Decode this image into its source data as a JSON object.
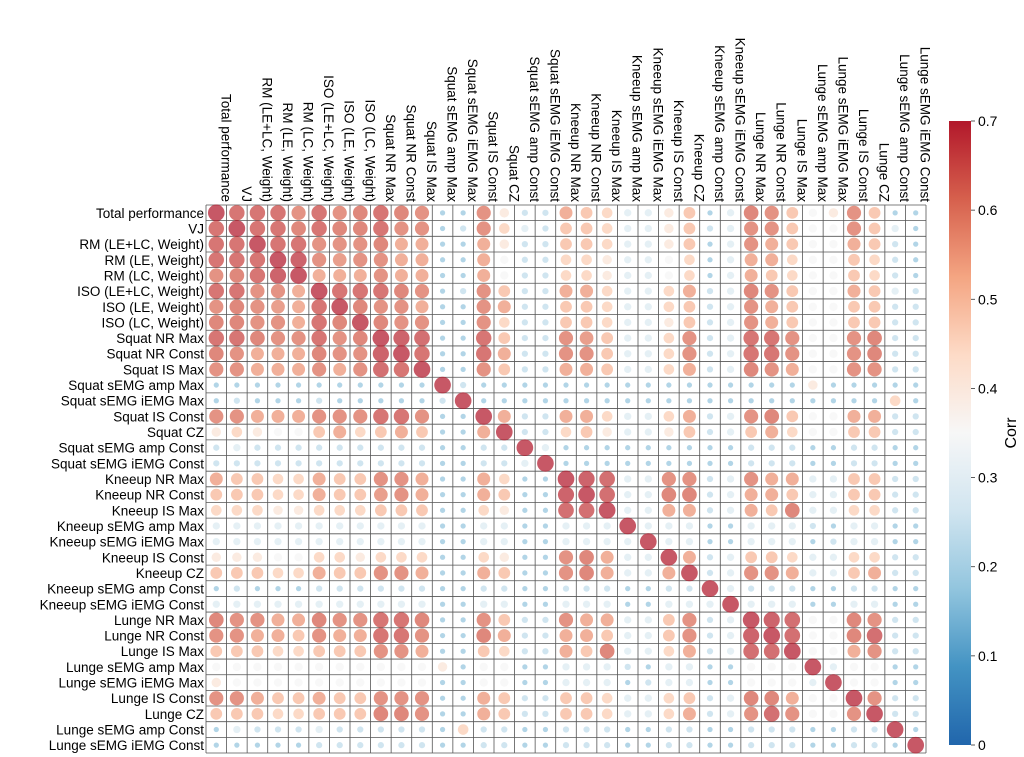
{
  "chart_data": {
    "type": "heatmap",
    "style": "corrplot-circles",
    "variables": [
      "Total performance",
      "VJ",
      "RM (LE+LC, Weight)",
      "RM (LE, Weight)",
      "RM (LC, Weight)",
      "ISO (LE+LC, Weight)",
      "ISO (LE, Weight)",
      "ISO (LC, Weight)",
      "Squat NR Max",
      "Squat NR Const",
      "Squat IS Max",
      "Squat sEMG amp Max",
      "Squat sEMG iEMG Max",
      "Squat IS Const",
      "Squat CZ",
      "Squat sEMG amp Const",
      "Squat sEMG iEMG Const",
      "Kneeup NR Max",
      "Kneeup NR Const",
      "Kneeup IS Max",
      "Kneeup sEMG amp Max",
      "Kneeup sEMG iEMG Max",
      "Kneeup IS Const",
      "Kneeup CZ",
      "Kneeup sEMG amp Const",
      "Kneeup sEMG iEMG Const",
      "Lunge NR Max",
      "Lunge NR Const",
      "Lunge IS Max",
      "Lunge sEMG amp Max",
      "Lunge sEMG iEMG Max",
      "Lunge IS Const",
      "Lunge CZ",
      "Lunge sEMG amp Const",
      "Lunge sEMG iEMG Const"
    ],
    "colorbar": {
      "label": "Corr",
      "min": 0,
      "max": 0.7,
      "ticks": [
        "0",
        "0.1",
        "0.2",
        "0.3",
        "0.4",
        "0.5",
        "0.6",
        "0.7"
      ],
      "stops": [
        "#2166ac",
        "#4393c3",
        "#92c5de",
        "#d1e5f0",
        "#f7f7f7",
        "#fddbc7",
        "#f4a582",
        "#d6604d",
        "#b2182b"
      ]
    },
    "values": [
      [
        0.7,
        0.65,
        0.65,
        0.65,
        0.6,
        0.65,
        0.6,
        0.62,
        0.65,
        0.62,
        0.6,
        0.2,
        0.2,
        0.6,
        0.4,
        0.25,
        0.25,
        0.55,
        0.5,
        0.45,
        0.3,
        0.3,
        0.4,
        0.5,
        0.2,
        0.3,
        0.62,
        0.6,
        0.5,
        0.35,
        0.4,
        0.6,
        0.5,
        0.2,
        0.2
      ],
      [
        0.65,
        0.7,
        0.65,
        0.65,
        0.62,
        0.65,
        0.62,
        0.62,
        0.65,
        0.6,
        0.6,
        0.2,
        0.25,
        0.6,
        0.45,
        0.3,
        0.25,
        0.5,
        0.5,
        0.45,
        0.3,
        0.3,
        0.4,
        0.5,
        0.25,
        0.3,
        0.6,
        0.6,
        0.5,
        0.35,
        0.35,
        0.6,
        0.5,
        0.3,
        0.2
      ],
      [
        0.65,
        0.65,
        0.7,
        0.65,
        0.65,
        0.6,
        0.6,
        0.6,
        0.62,
        0.55,
        0.55,
        0.2,
        0.2,
        0.55,
        0.4,
        0.25,
        0.25,
        0.5,
        0.5,
        0.45,
        0.3,
        0.3,
        0.4,
        0.5,
        0.2,
        0.3,
        0.6,
        0.55,
        0.5,
        0.35,
        0.35,
        0.55,
        0.5,
        0.25,
        0.2
      ],
      [
        0.65,
        0.65,
        0.65,
        0.7,
        0.68,
        0.6,
        0.58,
        0.6,
        0.6,
        0.55,
        0.55,
        0.2,
        0.2,
        0.55,
        0.35,
        0.25,
        0.25,
        0.45,
        0.45,
        0.4,
        0.3,
        0.3,
        0.35,
        0.45,
        0.2,
        0.3,
        0.55,
        0.55,
        0.45,
        0.35,
        0.35,
        0.5,
        0.45,
        0.25,
        0.2
      ],
      [
        0.6,
        0.62,
        0.65,
        0.68,
        0.7,
        0.55,
        0.55,
        0.55,
        0.6,
        0.55,
        0.55,
        0.2,
        0.2,
        0.55,
        0.35,
        0.25,
        0.25,
        0.45,
        0.45,
        0.4,
        0.3,
        0.3,
        0.35,
        0.45,
        0.2,
        0.3,
        0.55,
        0.5,
        0.45,
        0.35,
        0.35,
        0.5,
        0.45,
        0.25,
        0.2
      ],
      [
        0.65,
        0.65,
        0.6,
        0.6,
        0.55,
        0.7,
        0.65,
        0.65,
        0.65,
        0.62,
        0.6,
        0.2,
        0.25,
        0.6,
        0.5,
        0.25,
        0.25,
        0.55,
        0.55,
        0.45,
        0.3,
        0.3,
        0.45,
        0.55,
        0.25,
        0.3,
        0.62,
        0.6,
        0.5,
        0.35,
        0.35,
        0.55,
        0.5,
        0.3,
        0.25
      ],
      [
        0.6,
        0.62,
        0.6,
        0.58,
        0.55,
        0.65,
        0.7,
        0.62,
        0.6,
        0.6,
        0.55,
        0.2,
        0.2,
        0.6,
        0.55,
        0.25,
        0.25,
        0.5,
        0.5,
        0.45,
        0.3,
        0.3,
        0.45,
        0.5,
        0.25,
        0.3,
        0.6,
        0.55,
        0.5,
        0.35,
        0.35,
        0.5,
        0.5,
        0.25,
        0.25
      ],
      [
        0.62,
        0.62,
        0.6,
        0.6,
        0.55,
        0.65,
        0.62,
        0.7,
        0.62,
        0.6,
        0.6,
        0.2,
        0.2,
        0.6,
        0.45,
        0.25,
        0.25,
        0.5,
        0.5,
        0.45,
        0.3,
        0.3,
        0.4,
        0.5,
        0.25,
        0.3,
        0.6,
        0.55,
        0.5,
        0.35,
        0.35,
        0.5,
        0.5,
        0.25,
        0.25
      ],
      [
        0.65,
        0.65,
        0.62,
        0.6,
        0.6,
        0.65,
        0.6,
        0.62,
        0.7,
        0.68,
        0.66,
        0.2,
        0.2,
        0.65,
        0.5,
        0.25,
        0.25,
        0.6,
        0.58,
        0.5,
        0.3,
        0.3,
        0.45,
        0.6,
        0.25,
        0.3,
        0.65,
        0.65,
        0.6,
        0.35,
        0.35,
        0.6,
        0.62,
        0.25,
        0.25
      ],
      [
        0.62,
        0.6,
        0.55,
        0.55,
        0.55,
        0.62,
        0.6,
        0.6,
        0.68,
        0.7,
        0.65,
        0.2,
        0.2,
        0.65,
        0.55,
        0.25,
        0.25,
        0.6,
        0.6,
        0.5,
        0.3,
        0.3,
        0.45,
        0.6,
        0.25,
        0.3,
        0.65,
        0.65,
        0.6,
        0.35,
        0.35,
        0.6,
        0.62,
        0.25,
        0.25
      ],
      [
        0.6,
        0.6,
        0.55,
        0.55,
        0.55,
        0.6,
        0.55,
        0.6,
        0.66,
        0.65,
        0.7,
        0.2,
        0.2,
        0.6,
        0.5,
        0.25,
        0.25,
        0.55,
        0.55,
        0.5,
        0.3,
        0.3,
        0.45,
        0.55,
        0.25,
        0.3,
        0.62,
        0.6,
        0.55,
        0.35,
        0.35,
        0.6,
        0.6,
        0.25,
        0.25
      ],
      [
        0.2,
        0.2,
        0.2,
        0.2,
        0.2,
        0.2,
        0.2,
        0.2,
        0.2,
        0.2,
        0.2,
        0.7,
        0.25,
        0.2,
        0.2,
        0.2,
        0.2,
        0.2,
        0.2,
        0.2,
        0.2,
        0.2,
        0.2,
        0.2,
        0.2,
        0.2,
        0.2,
        0.2,
        0.2,
        0.4,
        0.2,
        0.2,
        0.2,
        0.2,
        0.2
      ],
      [
        0.2,
        0.25,
        0.2,
        0.2,
        0.2,
        0.25,
        0.2,
        0.2,
        0.2,
        0.2,
        0.2,
        0.25,
        0.7,
        0.2,
        0.2,
        0.2,
        0.2,
        0.2,
        0.2,
        0.2,
        0.2,
        0.2,
        0.2,
        0.2,
        0.2,
        0.2,
        0.2,
        0.2,
        0.2,
        0.2,
        0.2,
        0.2,
        0.2,
        0.45,
        0.2
      ],
      [
        0.6,
        0.6,
        0.55,
        0.55,
        0.55,
        0.6,
        0.6,
        0.6,
        0.65,
        0.65,
        0.6,
        0.2,
        0.2,
        0.7,
        0.55,
        0.25,
        0.25,
        0.55,
        0.55,
        0.45,
        0.3,
        0.3,
        0.45,
        0.55,
        0.25,
        0.3,
        0.6,
        0.62,
        0.5,
        0.35,
        0.35,
        0.55,
        0.55,
        0.25,
        0.25
      ],
      [
        0.4,
        0.45,
        0.4,
        0.35,
        0.35,
        0.5,
        0.55,
        0.45,
        0.5,
        0.55,
        0.5,
        0.2,
        0.2,
        0.55,
        0.7,
        0.25,
        0.25,
        0.45,
        0.5,
        0.4,
        0.3,
        0.3,
        0.4,
        0.5,
        0.25,
        0.3,
        0.5,
        0.55,
        0.45,
        0.35,
        0.35,
        0.5,
        0.5,
        0.25,
        0.25
      ],
      [
        0.25,
        0.3,
        0.25,
        0.25,
        0.25,
        0.25,
        0.25,
        0.25,
        0.25,
        0.25,
        0.25,
        0.2,
        0.2,
        0.25,
        0.25,
        0.7,
        0.3,
        0.2,
        0.2,
        0.2,
        0.2,
        0.2,
        0.2,
        0.2,
        0.2,
        0.2,
        0.25,
        0.25,
        0.25,
        0.2,
        0.2,
        0.25,
        0.25,
        0.2,
        0.2
      ],
      [
        0.25,
        0.25,
        0.25,
        0.25,
        0.25,
        0.25,
        0.25,
        0.25,
        0.25,
        0.25,
        0.25,
        0.2,
        0.2,
        0.25,
        0.25,
        0.3,
        0.7,
        0.2,
        0.2,
        0.2,
        0.2,
        0.2,
        0.2,
        0.2,
        0.2,
        0.2,
        0.25,
        0.25,
        0.25,
        0.2,
        0.2,
        0.25,
        0.25,
        0.2,
        0.2
      ],
      [
        0.55,
        0.5,
        0.5,
        0.45,
        0.45,
        0.55,
        0.5,
        0.5,
        0.6,
        0.6,
        0.55,
        0.2,
        0.2,
        0.55,
        0.45,
        0.2,
        0.2,
        0.7,
        0.68,
        0.66,
        0.3,
        0.3,
        0.6,
        0.6,
        0.25,
        0.3,
        0.6,
        0.55,
        0.55,
        0.3,
        0.3,
        0.5,
        0.5,
        0.25,
        0.25
      ],
      [
        0.5,
        0.5,
        0.5,
        0.45,
        0.45,
        0.55,
        0.5,
        0.5,
        0.58,
        0.6,
        0.55,
        0.2,
        0.2,
        0.55,
        0.5,
        0.2,
        0.2,
        0.68,
        0.7,
        0.66,
        0.3,
        0.3,
        0.62,
        0.62,
        0.25,
        0.3,
        0.55,
        0.55,
        0.5,
        0.3,
        0.3,
        0.5,
        0.5,
        0.25,
        0.25
      ],
      [
        0.45,
        0.45,
        0.45,
        0.4,
        0.4,
        0.45,
        0.45,
        0.45,
        0.5,
        0.5,
        0.5,
        0.2,
        0.2,
        0.45,
        0.4,
        0.2,
        0.2,
        0.66,
        0.66,
        0.7,
        0.3,
        0.3,
        0.55,
        0.55,
        0.25,
        0.3,
        0.55,
        0.5,
        0.62,
        0.3,
        0.3,
        0.45,
        0.45,
        0.25,
        0.25
      ],
      [
        0.3,
        0.3,
        0.3,
        0.3,
        0.3,
        0.3,
        0.3,
        0.3,
        0.3,
        0.3,
        0.3,
        0.2,
        0.2,
        0.3,
        0.3,
        0.2,
        0.2,
        0.3,
        0.3,
        0.3,
        0.7,
        0.3,
        0.3,
        0.3,
        0.2,
        0.2,
        0.3,
        0.3,
        0.3,
        0.25,
        0.2,
        0.3,
        0.3,
        0.2,
        0.2
      ],
      [
        0.3,
        0.3,
        0.3,
        0.3,
        0.3,
        0.3,
        0.3,
        0.3,
        0.3,
        0.3,
        0.3,
        0.2,
        0.2,
        0.3,
        0.3,
        0.2,
        0.2,
        0.3,
        0.3,
        0.3,
        0.3,
        0.7,
        0.3,
        0.3,
        0.2,
        0.2,
        0.3,
        0.3,
        0.3,
        0.2,
        0.25,
        0.3,
        0.3,
        0.2,
        0.2
      ],
      [
        0.4,
        0.4,
        0.4,
        0.35,
        0.35,
        0.45,
        0.45,
        0.4,
        0.45,
        0.45,
        0.45,
        0.2,
        0.2,
        0.45,
        0.4,
        0.2,
        0.2,
        0.6,
        0.62,
        0.55,
        0.3,
        0.3,
        0.7,
        0.55,
        0.25,
        0.3,
        0.5,
        0.5,
        0.45,
        0.3,
        0.3,
        0.45,
        0.45,
        0.25,
        0.25
      ],
      [
        0.5,
        0.5,
        0.5,
        0.45,
        0.45,
        0.55,
        0.5,
        0.5,
        0.6,
        0.6,
        0.55,
        0.2,
        0.2,
        0.55,
        0.5,
        0.2,
        0.2,
        0.6,
        0.62,
        0.55,
        0.3,
        0.3,
        0.55,
        0.7,
        0.25,
        0.3,
        0.6,
        0.6,
        0.55,
        0.3,
        0.3,
        0.5,
        0.55,
        0.25,
        0.25
      ],
      [
        0.2,
        0.25,
        0.2,
        0.2,
        0.2,
        0.25,
        0.25,
        0.25,
        0.25,
        0.25,
        0.25,
        0.2,
        0.2,
        0.25,
        0.25,
        0.2,
        0.2,
        0.25,
        0.25,
        0.25,
        0.2,
        0.2,
        0.25,
        0.25,
        0.7,
        0.3,
        0.25,
        0.25,
        0.25,
        0.2,
        0.2,
        0.25,
        0.25,
        0.2,
        0.2
      ],
      [
        0.3,
        0.3,
        0.3,
        0.3,
        0.3,
        0.3,
        0.3,
        0.3,
        0.3,
        0.3,
        0.3,
        0.2,
        0.2,
        0.3,
        0.3,
        0.2,
        0.2,
        0.3,
        0.3,
        0.3,
        0.2,
        0.2,
        0.3,
        0.3,
        0.3,
        0.7,
        0.3,
        0.3,
        0.3,
        0.2,
        0.2,
        0.3,
        0.3,
        0.2,
        0.2
      ],
      [
        0.62,
        0.6,
        0.6,
        0.55,
        0.55,
        0.62,
        0.6,
        0.6,
        0.65,
        0.65,
        0.62,
        0.2,
        0.2,
        0.6,
        0.5,
        0.25,
        0.25,
        0.6,
        0.55,
        0.55,
        0.3,
        0.3,
        0.5,
        0.6,
        0.25,
        0.3,
        0.7,
        0.68,
        0.66,
        0.35,
        0.35,
        0.62,
        0.6,
        0.25,
        0.25
      ],
      [
        0.6,
        0.6,
        0.55,
        0.55,
        0.5,
        0.6,
        0.55,
        0.55,
        0.65,
        0.65,
        0.6,
        0.2,
        0.2,
        0.62,
        0.55,
        0.25,
        0.25,
        0.55,
        0.55,
        0.5,
        0.3,
        0.3,
        0.5,
        0.6,
        0.25,
        0.3,
        0.68,
        0.7,
        0.66,
        0.35,
        0.35,
        0.62,
        0.66,
        0.25,
        0.25
      ],
      [
        0.5,
        0.5,
        0.5,
        0.45,
        0.45,
        0.5,
        0.5,
        0.5,
        0.6,
        0.6,
        0.55,
        0.2,
        0.2,
        0.5,
        0.45,
        0.25,
        0.25,
        0.55,
        0.5,
        0.62,
        0.3,
        0.3,
        0.45,
        0.55,
        0.25,
        0.3,
        0.66,
        0.66,
        0.7,
        0.35,
        0.35,
        0.55,
        0.6,
        0.25,
        0.25
      ],
      [
        0.35,
        0.35,
        0.35,
        0.35,
        0.35,
        0.35,
        0.35,
        0.35,
        0.35,
        0.35,
        0.35,
        0.4,
        0.2,
        0.35,
        0.35,
        0.2,
        0.2,
        0.3,
        0.3,
        0.3,
        0.25,
        0.2,
        0.3,
        0.3,
        0.2,
        0.2,
        0.35,
        0.35,
        0.35,
        0.7,
        0.3,
        0.35,
        0.35,
        0.2,
        0.2
      ],
      [
        0.4,
        0.35,
        0.35,
        0.35,
        0.35,
        0.35,
        0.35,
        0.35,
        0.35,
        0.35,
        0.35,
        0.2,
        0.2,
        0.35,
        0.35,
        0.2,
        0.2,
        0.3,
        0.3,
        0.3,
        0.2,
        0.25,
        0.3,
        0.3,
        0.2,
        0.2,
        0.35,
        0.35,
        0.35,
        0.3,
        0.7,
        0.35,
        0.35,
        0.2,
        0.2
      ],
      [
        0.6,
        0.6,
        0.55,
        0.5,
        0.5,
        0.55,
        0.5,
        0.5,
        0.6,
        0.6,
        0.6,
        0.2,
        0.2,
        0.55,
        0.5,
        0.25,
        0.25,
        0.5,
        0.5,
        0.45,
        0.3,
        0.3,
        0.45,
        0.5,
        0.25,
        0.3,
        0.62,
        0.62,
        0.55,
        0.35,
        0.35,
        0.7,
        0.6,
        0.25,
        0.25
      ],
      [
        0.5,
        0.5,
        0.5,
        0.45,
        0.45,
        0.5,
        0.5,
        0.5,
        0.62,
        0.62,
        0.6,
        0.2,
        0.2,
        0.55,
        0.5,
        0.25,
        0.25,
        0.5,
        0.5,
        0.45,
        0.3,
        0.3,
        0.45,
        0.55,
        0.25,
        0.3,
        0.6,
        0.66,
        0.6,
        0.35,
        0.35,
        0.6,
        0.7,
        0.25,
        0.25
      ],
      [
        0.2,
        0.3,
        0.25,
        0.25,
        0.25,
        0.3,
        0.25,
        0.25,
        0.25,
        0.25,
        0.25,
        0.2,
        0.45,
        0.25,
        0.25,
        0.2,
        0.2,
        0.25,
        0.25,
        0.25,
        0.2,
        0.2,
        0.25,
        0.25,
        0.2,
        0.2,
        0.25,
        0.25,
        0.25,
        0.2,
        0.2,
        0.25,
        0.25,
        0.7,
        0.2
      ],
      [
        0.2,
        0.2,
        0.2,
        0.2,
        0.2,
        0.25,
        0.25,
        0.25,
        0.25,
        0.25,
        0.25,
        0.2,
        0.2,
        0.25,
        0.25,
        0.2,
        0.2,
        0.25,
        0.25,
        0.25,
        0.2,
        0.2,
        0.25,
        0.25,
        0.2,
        0.2,
        0.25,
        0.25,
        0.25,
        0.2,
        0.2,
        0.25,
        0.25,
        0.2,
        0.7
      ]
    ]
  }
}
